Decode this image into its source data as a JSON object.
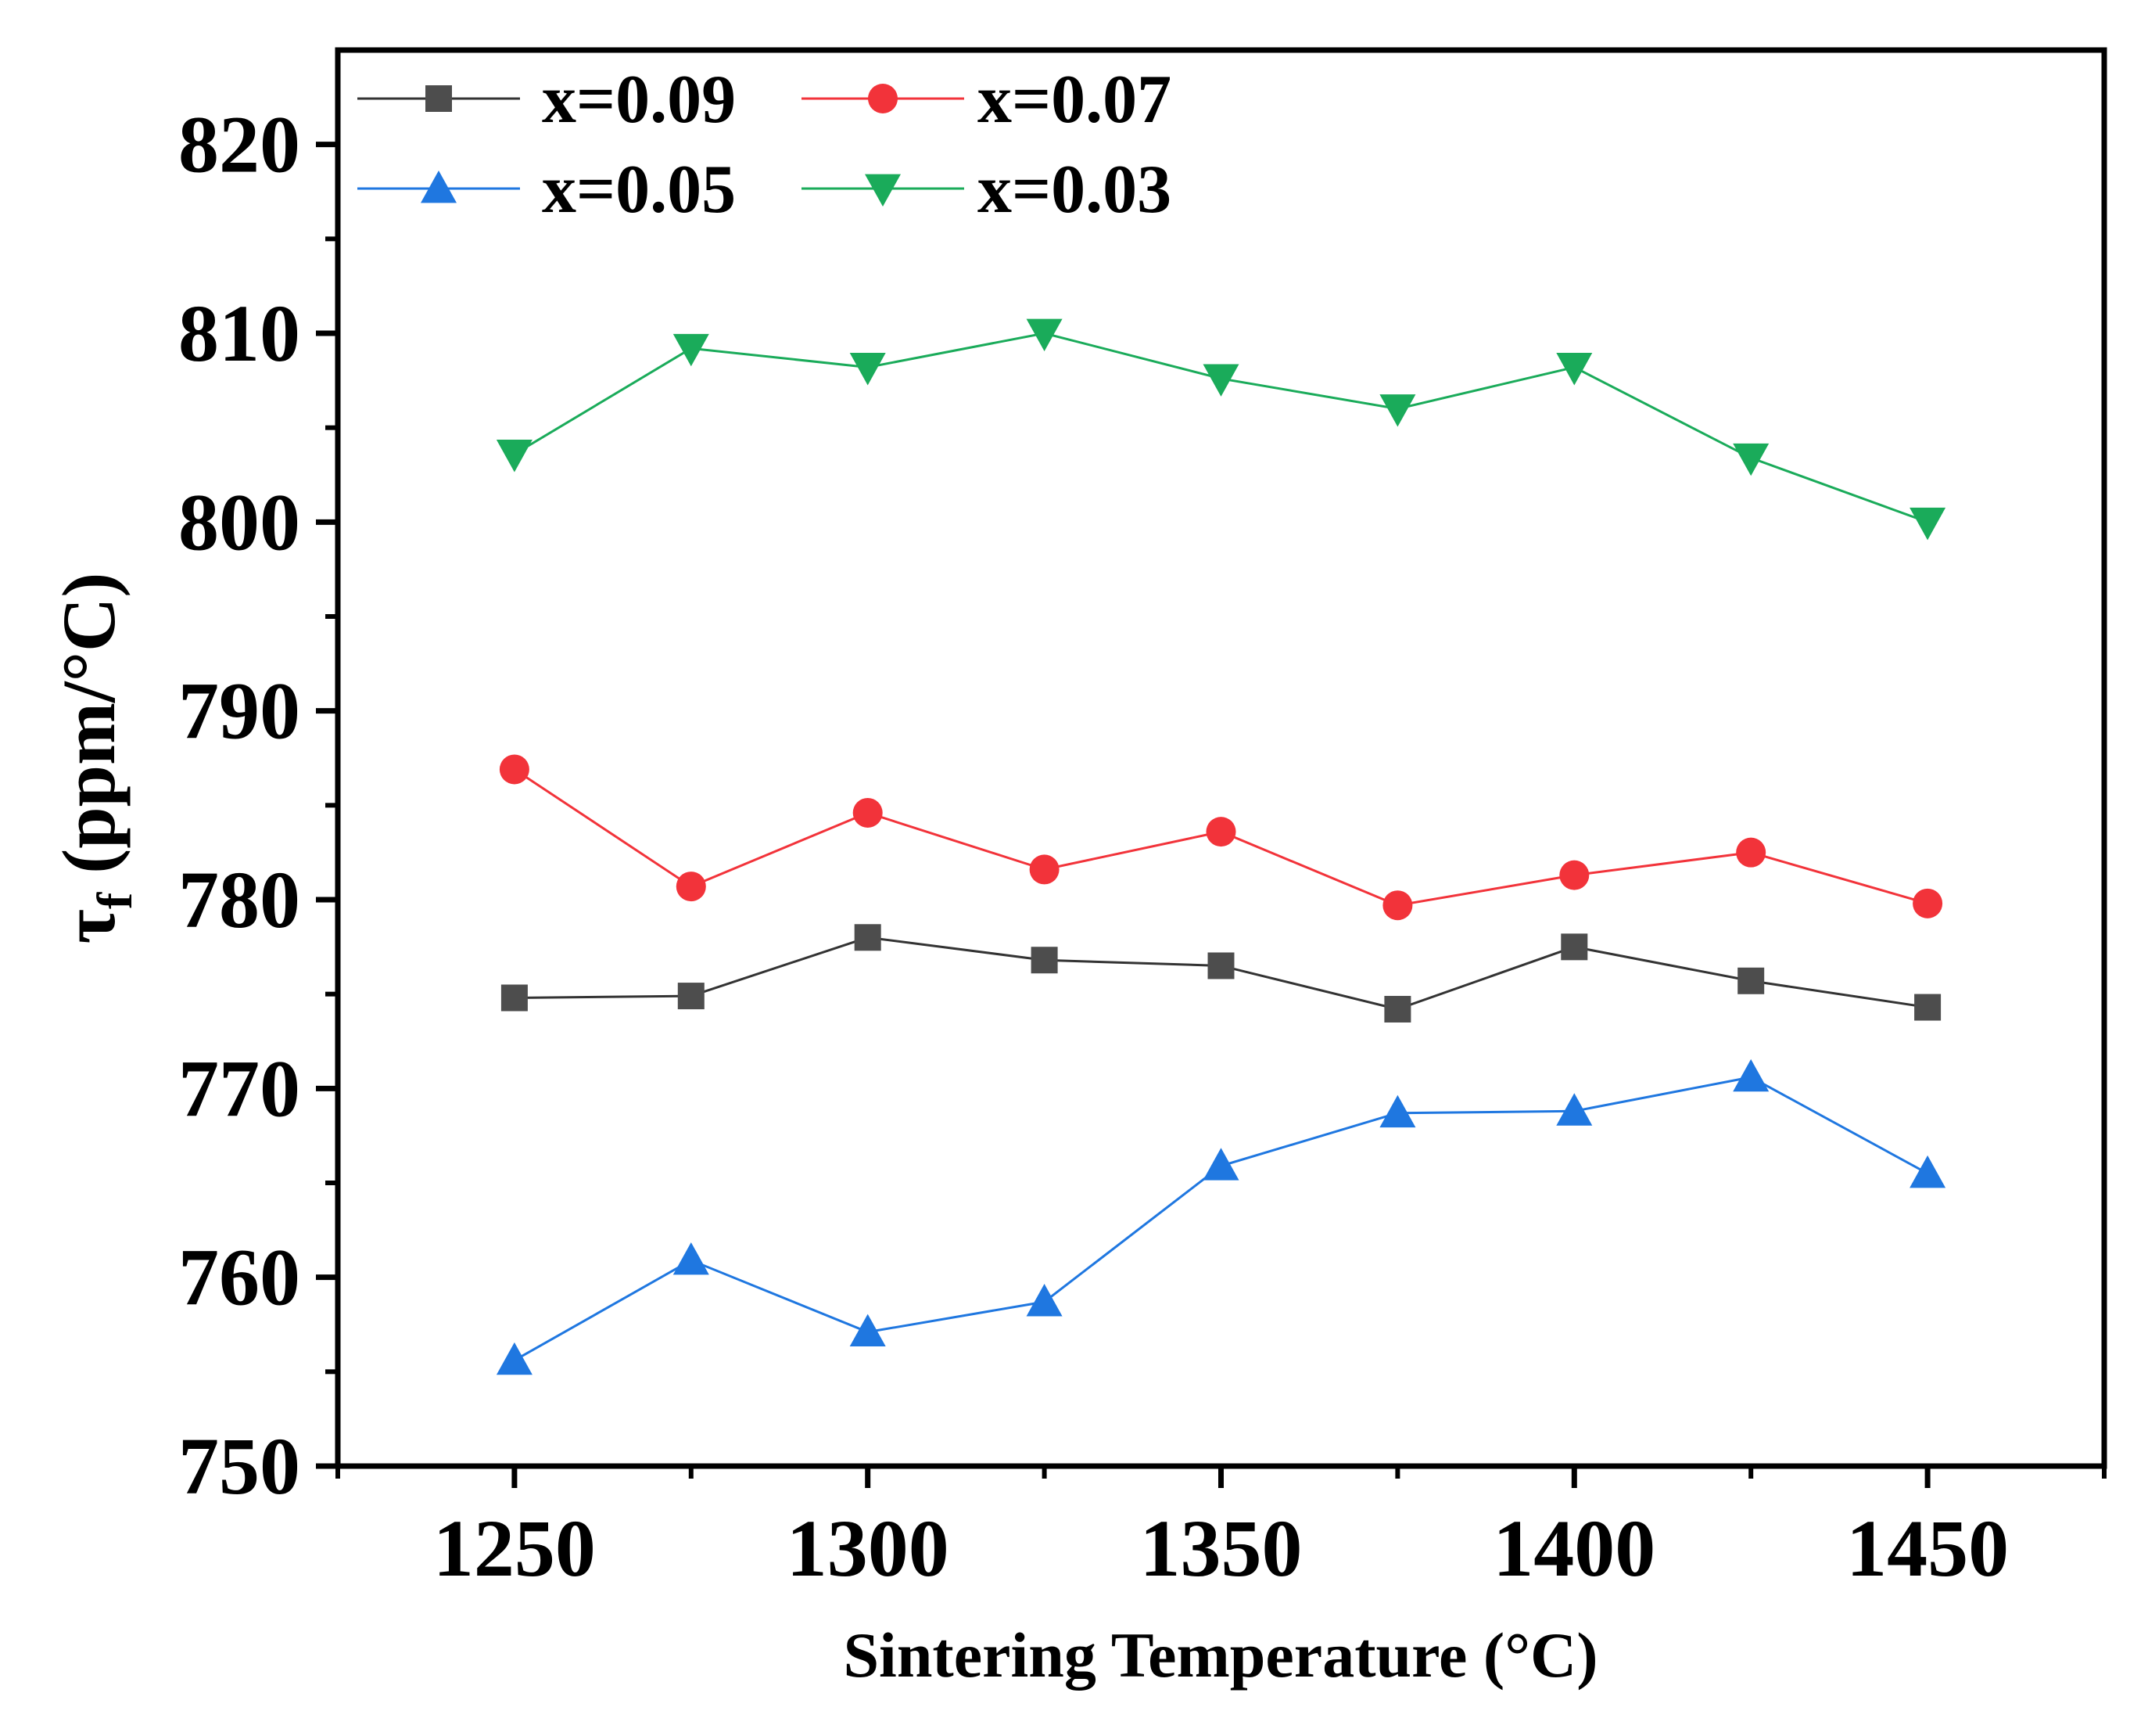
{
  "chart_data": {
    "type": "line",
    "title": "",
    "xlabel": "Sintering Temperature (°C)",
    "ylabel": "τ",
    "ylabel_subscript": "f",
    "ylabel_unit": " (ppm/°C)",
    "x": [
      1250,
      1275,
      1300,
      1325,
      1350,
      1375,
      1400,
      1425,
      1450
    ],
    "xlim": [
      1225,
      1475
    ],
    "ylim": [
      750,
      825
    ],
    "xticks": [
      1250,
      1300,
      1350,
      1400,
      1450
    ],
    "yticks": [
      750,
      760,
      770,
      780,
      790,
      800,
      810,
      820
    ],
    "grid": false,
    "legend_position": "top-left",
    "series": [
      {
        "name": "x=0.09",
        "marker": "square",
        "color": "#4d4d4d",
        "line_color": "#333333",
        "values": [
          774.8,
          774.9,
          778.0,
          776.8,
          776.5,
          774.2,
          777.5,
          775.7,
          774.3
        ]
      },
      {
        "name": "x=0.07",
        "marker": "circle",
        "color": "#f2333a",
        "line_color": "#f2333a",
        "values": [
          786.9,
          780.7,
          784.6,
          781.6,
          783.6,
          779.7,
          781.3,
          782.5,
          779.8
        ]
      },
      {
        "name": "x=0.05",
        "marker": "triangle-up",
        "color": "#1f77e0",
        "line_color": "#1f77e0",
        "values": [
          755.6,
          760.9,
          757.1,
          758.7,
          765.9,
          768.7,
          768.8,
          770.6,
          765.5
        ]
      },
      {
        "name": "x=0.03",
        "marker": "triangle-down",
        "color": "#1aab5a",
        "line_color": "#1aab5a",
        "values": [
          803.6,
          809.2,
          808.2,
          810.0,
          807.6,
          806.0,
          808.2,
          803.4,
          800.0
        ]
      }
    ]
  }
}
